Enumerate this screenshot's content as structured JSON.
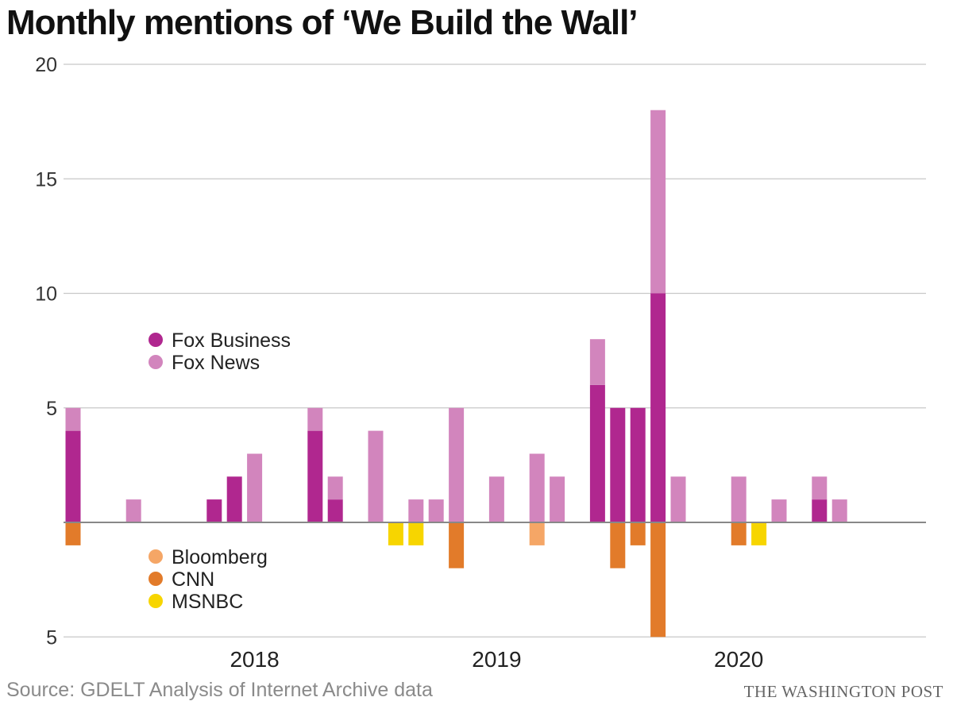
{
  "title": "Monthly mentions of ‘We Build the Wall’",
  "source": "Source: GDELT Analysis of Internet Archive data",
  "credit": "THE WASHINGTON POST",
  "chart_data": {
    "type": "bar",
    "stacked": true,
    "diverging": true,
    "x_unit": "month",
    "x_start": "2017-04",
    "x_end": "2020-07",
    "x_tick_labels": [
      {
        "label": "2018",
        "month": "2018-01"
      },
      {
        "label": "2019",
        "month": "2019-01"
      },
      {
        "label": "2020",
        "month": "2020-01"
      }
    ],
    "y_upper": {
      "range": [
        0,
        20
      ],
      "ticks": [
        5,
        10,
        15,
        20
      ]
    },
    "y_lower": {
      "range": [
        0,
        5
      ],
      "ticks": [
        5
      ]
    },
    "grid": true,
    "legend_upper": {
      "placement": "upper-left",
      "entries": [
        "Fox Business",
        "Fox News"
      ]
    },
    "legend_lower": {
      "placement": "lower-left",
      "entries": [
        "Bloomberg",
        "CNN",
        "MSNBC"
      ]
    },
    "colors": {
      "Fox Business": "#b0278f",
      "Fox News": "#d285bd",
      "Bloomberg": "#f5a666",
      "CNN": "#e27b2a",
      "MSNBC": "#f7d500"
    },
    "upper_series": [
      {
        "name": "Fox Business",
        "data": [
          [
            "2017-04",
            4
          ],
          [
            "2017-11",
            1
          ],
          [
            "2017-12",
            2
          ],
          [
            "2018-04",
            4
          ],
          [
            "2018-05",
            1
          ],
          [
            "2019-06",
            6
          ],
          [
            "2019-07",
            5
          ],
          [
            "2019-08",
            5
          ],
          [
            "2019-09",
            10
          ],
          [
            "2020-05",
            1
          ]
        ]
      },
      {
        "name": "Fox News",
        "data": [
          [
            "2017-04",
            1
          ],
          [
            "2017-07",
            1
          ],
          [
            "2018-01",
            3
          ],
          [
            "2018-04",
            1
          ],
          [
            "2018-05",
            1
          ],
          [
            "2018-07",
            4
          ],
          [
            "2018-09",
            1
          ],
          [
            "2018-10",
            1
          ],
          [
            "2018-11",
            5
          ],
          [
            "2019-01",
            2
          ],
          [
            "2019-03",
            3
          ],
          [
            "2019-04",
            2
          ],
          [
            "2019-06",
            2
          ],
          [
            "2019-09",
            8
          ],
          [
            "2019-10",
            2
          ],
          [
            "2020-01",
            2
          ],
          [
            "2020-03",
            1
          ],
          [
            "2020-05",
            1
          ],
          [
            "2020-06",
            1
          ]
        ]
      }
    ],
    "lower_series": [
      {
        "name": "Bloomberg",
        "data": [
          [
            "2019-03",
            1
          ]
        ]
      },
      {
        "name": "CNN",
        "data": [
          [
            "2017-04",
            1
          ],
          [
            "2018-11",
            2
          ],
          [
            "2019-07",
            2
          ],
          [
            "2019-08",
            1
          ],
          [
            "2019-09",
            5
          ],
          [
            "2020-01",
            1
          ]
        ]
      },
      {
        "name": "MSNBC",
        "data": [
          [
            "2018-08",
            1
          ],
          [
            "2018-09",
            1
          ],
          [
            "2020-02",
            1
          ]
        ]
      }
    ]
  }
}
